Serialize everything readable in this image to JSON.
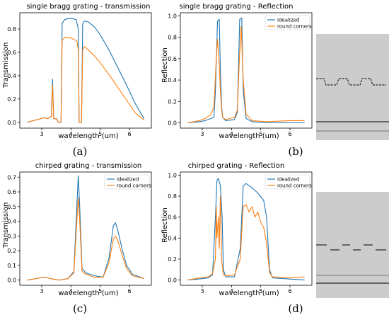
{
  "colors": {
    "idealized": "#1f77b4",
    "round_corners": "#ff7f0e",
    "shape_bg": "#cccccc"
  },
  "legend": {
    "idealized": "idealized",
    "round_corners": "round corners"
  },
  "chart_data": [
    {
      "id": "a",
      "type": "line",
      "caption": "(a)",
      "title": "single bragg grating - transmission",
      "xlabel": "wavelength (um)",
      "ylabel": "Transmission",
      "xlim": [
        2.25,
        6.75
      ],
      "ylim": [
        -0.05,
        0.94
      ],
      "xticks": [
        3,
        4,
        5,
        6
      ],
      "yticks": [
        0.0,
        0.2,
        0.4,
        0.6,
        0.8
      ],
      "ytick_labels": [
        "0.0",
        "0.2",
        "0.4",
        "0.6",
        "0.8"
      ],
      "legend_position": "none",
      "series": [
        {
          "key": "idealized",
          "points": [
            [
              2.5,
              0.0
            ],
            [
              2.8,
              0.02
            ],
            [
              3.1,
              0.04
            ],
            [
              3.2,
              0.03
            ],
            [
              3.33,
              0.05
            ],
            [
              3.37,
              0.37
            ],
            [
              3.41,
              0.03
            ],
            [
              3.52,
              0.03
            ],
            [
              3.56,
              0.0
            ],
            [
              3.66,
              0.0
            ],
            [
              3.7,
              0.85
            ],
            [
              3.78,
              0.88
            ],
            [
              3.9,
              0.89
            ],
            [
              4.05,
              0.89
            ],
            [
              4.18,
              0.88
            ],
            [
              4.25,
              0.8
            ],
            [
              4.28,
              0.0
            ],
            [
              4.36,
              0.0
            ],
            [
              4.4,
              0.84
            ],
            [
              4.46,
              0.87
            ],
            [
              4.6,
              0.86
            ],
            [
              4.8,
              0.82
            ],
            [
              5.0,
              0.75
            ],
            [
              5.3,
              0.62
            ],
            [
              5.6,
              0.47
            ],
            [
              5.9,
              0.32
            ],
            [
              6.2,
              0.16
            ],
            [
              6.5,
              0.03
            ]
          ]
        },
        {
          "key": "round_corners",
          "points": [
            [
              2.5,
              0.0
            ],
            [
              2.8,
              0.02
            ],
            [
              3.1,
              0.04
            ],
            [
              3.2,
              0.03
            ],
            [
              3.33,
              0.05
            ],
            [
              3.37,
              0.32
            ],
            [
              3.41,
              0.03
            ],
            [
              3.52,
              0.03
            ],
            [
              3.56,
              0.0
            ],
            [
              3.66,
              0.0
            ],
            [
              3.7,
              0.7
            ],
            [
              3.78,
              0.73
            ],
            [
              3.95,
              0.73
            ],
            [
              4.1,
              0.71
            ],
            [
              4.2,
              0.7
            ],
            [
              4.25,
              0.62
            ],
            [
              4.28,
              0.0
            ],
            [
              4.36,
              0.0
            ],
            [
              4.4,
              0.62
            ],
            [
              4.46,
              0.65
            ],
            [
              4.6,
              0.62
            ],
            [
              4.8,
              0.57
            ],
            [
              5.0,
              0.51
            ],
            [
              5.3,
              0.41
            ],
            [
              5.6,
              0.3
            ],
            [
              5.9,
              0.19
            ],
            [
              6.2,
              0.08
            ],
            [
              6.5,
              0.02
            ]
          ]
        }
      ]
    },
    {
      "id": "b",
      "type": "line",
      "caption": "(b)",
      "title": "single bragg grating - Reflection",
      "xlabel": "wavelength (um)",
      "ylabel": "Reflection",
      "xlim": [
        2.25,
        6.75
      ],
      "ylim": [
        -0.05,
        1.03
      ],
      "xticks": [
        3,
        4,
        5,
        6
      ],
      "yticks": [
        0.0,
        0.2,
        0.4,
        0.6,
        0.8,
        1.0
      ],
      "ytick_labels": [
        "0.0",
        "0.2",
        "0.4",
        "0.6",
        "0.8",
        "1.0"
      ],
      "legend_position": "top-right",
      "series": [
        {
          "key": "idealized",
          "points": [
            [
              2.5,
              0.0
            ],
            [
              2.9,
              0.01
            ],
            [
              3.1,
              0.02
            ],
            [
              3.3,
              0.04
            ],
            [
              3.4,
              0.05
            ],
            [
              3.45,
              0.3
            ],
            [
              3.52,
              0.95
            ],
            [
              3.58,
              0.97
            ],
            [
              3.62,
              0.5
            ],
            [
              3.66,
              0.15
            ],
            [
              3.7,
              0.05
            ],
            [
              3.8,
              0.02
            ],
            [
              4.1,
              0.03
            ],
            [
              4.2,
              0.1
            ],
            [
              4.28,
              0.97
            ],
            [
              4.35,
              0.98
            ],
            [
              4.4,
              0.3
            ],
            [
              4.5,
              0.04
            ],
            [
              4.7,
              0.01
            ],
            [
              5.2,
              0.0
            ],
            [
              6.5,
              0.0
            ]
          ]
        },
        {
          "key": "round_corners",
          "points": [
            [
              2.5,
              0.0
            ],
            [
              2.9,
              0.02
            ],
            [
              3.1,
              0.04
            ],
            [
              3.3,
              0.08
            ],
            [
              3.4,
              0.15
            ],
            [
              3.47,
              0.55
            ],
            [
              3.52,
              0.78
            ],
            [
              3.58,
              0.55
            ],
            [
              3.62,
              0.3
            ],
            [
              3.66,
              0.12
            ],
            [
              3.7,
              0.05
            ],
            [
              3.8,
              0.03
            ],
            [
              4.1,
              0.05
            ],
            [
              4.2,
              0.12
            ],
            [
              4.27,
              0.6
            ],
            [
              4.33,
              0.9
            ],
            [
              4.4,
              0.4
            ],
            [
              4.5,
              0.08
            ],
            [
              4.7,
              0.02
            ],
            [
              5.2,
              0.01
            ],
            [
              6.0,
              0.02
            ],
            [
              6.5,
              0.02
            ]
          ]
        }
      ]
    },
    {
      "id": "c",
      "type": "line",
      "caption": "(c)",
      "title": "chirped grating - transmission",
      "xlabel": "wavelength (um)",
      "ylabel": "Transmission",
      "xlim": [
        2.25,
        6.75
      ],
      "ylim": [
        -0.035,
        0.735
      ],
      "xticks": [
        3,
        4,
        5,
        6
      ],
      "yticks": [
        0.0,
        0.1,
        0.2,
        0.3,
        0.4,
        0.5,
        0.6,
        0.7
      ],
      "ytick_labels": [
        "0.0",
        "0.1",
        "0.2",
        "0.3",
        "0.4",
        "0.5",
        "0.6",
        "0.7"
      ],
      "legend_position": "top-right",
      "series": [
        {
          "key": "idealized",
          "points": [
            [
              2.5,
              0.0
            ],
            [
              2.8,
              0.01
            ],
            [
              3.1,
              0.02
            ],
            [
              3.3,
              0.01
            ],
            [
              3.6,
              0.0
            ],
            [
              3.9,
              0.01
            ],
            [
              4.1,
              0.06
            ],
            [
              4.2,
              0.5
            ],
            [
              4.25,
              0.71
            ],
            [
              4.3,
              0.5
            ],
            [
              4.38,
              0.08
            ],
            [
              4.5,
              0.05
            ],
            [
              4.8,
              0.03
            ],
            [
              5.1,
              0.02
            ],
            [
              5.3,
              0.15
            ],
            [
              5.45,
              0.37
            ],
            [
              5.52,
              0.39
            ],
            [
              5.6,
              0.34
            ],
            [
              5.75,
              0.21
            ],
            [
              5.9,
              0.1
            ],
            [
              6.1,
              0.04
            ],
            [
              6.5,
              0.01
            ]
          ]
        },
        {
          "key": "round_corners",
          "points": [
            [
              2.5,
              0.0
            ],
            [
              2.8,
              0.01
            ],
            [
              3.1,
              0.02
            ],
            [
              3.3,
              0.01
            ],
            [
              3.6,
              0.0
            ],
            [
              3.9,
              0.01
            ],
            [
              4.1,
              0.05
            ],
            [
              4.2,
              0.4
            ],
            [
              4.25,
              0.56
            ],
            [
              4.3,
              0.4
            ],
            [
              4.38,
              0.06
            ],
            [
              4.5,
              0.04
            ],
            [
              4.8,
              0.02
            ],
            [
              5.1,
              0.02
            ],
            [
              5.3,
              0.12
            ],
            [
              5.45,
              0.28
            ],
            [
              5.52,
              0.3
            ],
            [
              5.6,
              0.27
            ],
            [
              5.75,
              0.17
            ],
            [
              5.9,
              0.08
            ],
            [
              6.1,
              0.03
            ],
            [
              6.5,
              0.01
            ]
          ]
        }
      ]
    },
    {
      "id": "d",
      "type": "line",
      "caption": "(d)",
      "title": "chirped grating - Reflection",
      "xlabel": "wavelength (um)",
      "ylabel": "Reflection",
      "xlim": [
        2.25,
        6.75
      ],
      "ylim": [
        -0.05,
        1.03
      ],
      "xticks": [
        3,
        4,
        5,
        6
      ],
      "yticks": [
        0.0,
        0.2,
        0.4,
        0.6,
        0.8,
        1.0
      ],
      "ytick_labels": [
        "0.0",
        "0.2",
        "0.4",
        "0.6",
        "0.8",
        "1.0"
      ],
      "legend_position": "top-right",
      "series": [
        {
          "key": "idealized",
          "points": [
            [
              2.5,
              0.0
            ],
            [
              2.9,
              0.01
            ],
            [
              3.2,
              0.02
            ],
            [
              3.35,
              0.05
            ],
            [
              3.45,
              0.6
            ],
            [
              3.5,
              0.95
            ],
            [
              3.55,
              0.97
            ],
            [
              3.62,
              0.9
            ],
            [
              3.68,
              0.6
            ],
            [
              3.72,
              0.1
            ],
            [
              3.8,
              0.03
            ],
            [
              4.1,
              0.03
            ],
            [
              4.3,
              0.3
            ],
            [
              4.4,
              0.9
            ],
            [
              4.5,
              0.92
            ],
            [
              4.7,
              0.88
            ],
            [
              4.9,
              0.83
            ],
            [
              5.1,
              0.76
            ],
            [
              5.2,
              0.6
            ],
            [
              5.3,
              0.1
            ],
            [
              5.4,
              0.02
            ],
            [
              6.5,
              0.0
            ]
          ]
        },
        {
          "key": "round_corners",
          "points": [
            [
              2.5,
              0.0
            ],
            [
              2.9,
              0.02
            ],
            [
              3.2,
              0.03
            ],
            [
              3.35,
              0.06
            ],
            [
              3.45,
              0.2
            ],
            [
              3.48,
              0.7
            ],
            [
              3.5,
              0.4
            ],
            [
              3.55,
              0.6
            ],
            [
              3.58,
              0.3
            ],
            [
              3.62,
              0.8
            ],
            [
              3.66,
              0.2
            ],
            [
              3.72,
              0.05
            ],
            [
              3.8,
              0.04
            ],
            [
              4.1,
              0.05
            ],
            [
              4.3,
              0.2
            ],
            [
              4.4,
              0.7
            ],
            [
              4.5,
              0.72
            ],
            [
              4.6,
              0.65
            ],
            [
              4.7,
              0.7
            ],
            [
              4.8,
              0.6
            ],
            [
              4.9,
              0.65
            ],
            [
              5.0,
              0.55
            ],
            [
              5.1,
              0.5
            ],
            [
              5.2,
              0.35
            ],
            [
              5.3,
              0.07
            ],
            [
              5.4,
              0.03
            ],
            [
              6.0,
              0.02
            ],
            [
              6.5,
              0.03
            ]
          ]
        }
      ]
    }
  ],
  "shapes": [
    {
      "id": "top",
      "type": "grating-profile",
      "name": "periodic grating cross-section"
    },
    {
      "id": "bottom",
      "type": "grating-profile",
      "name": "chirped grating cross-section"
    }
  ]
}
